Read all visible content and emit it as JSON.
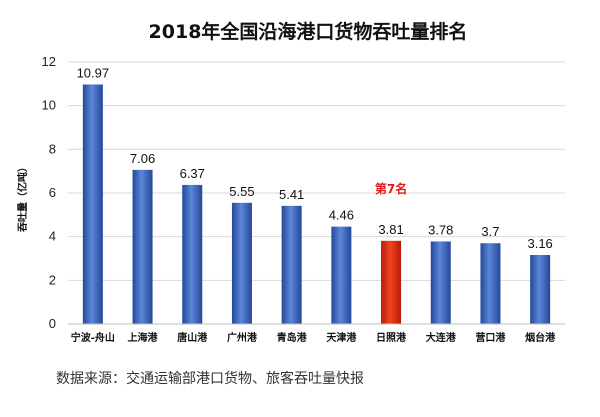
{
  "chart_data": {
    "type": "bar",
    "title": "2018年全国沿海港口货物吞吐量排名",
    "ylabel": "吞吐量（亿吨）",
    "xlabel": "",
    "ylim": [
      0,
      12
    ],
    "yticks": [
      0,
      2,
      4,
      6,
      8,
      10,
      12
    ],
    "categories": [
      "宁波-舟山",
      "上海港",
      "唐山港",
      "广州港",
      "青岛港",
      "天津港",
      "日照港",
      "大连港",
      "营口港",
      "烟台港"
    ],
    "values": [
      10.97,
      7.06,
      6.37,
      5.55,
      5.41,
      4.46,
      3.81,
      3.78,
      3.7,
      3.16
    ],
    "data_labels": [
      "10.97",
      "7.06",
      "6.37",
      "5.55",
      "5.41",
      "4.46",
      "3.81",
      "3.78",
      "3.7",
      "3.16"
    ],
    "highlight_index": 6,
    "annotation": {
      "text": "第7名",
      "target_index": 6,
      "color": "#e41a1a"
    },
    "colors": {
      "bar": "#3a63b8",
      "bar_highlight": "#e02b10",
      "grid": "#d9d9d9"
    },
    "grid": true,
    "legend": "none"
  },
  "source_note": "数据来源：交通运输部港口货物、旅客吞吐量快报"
}
